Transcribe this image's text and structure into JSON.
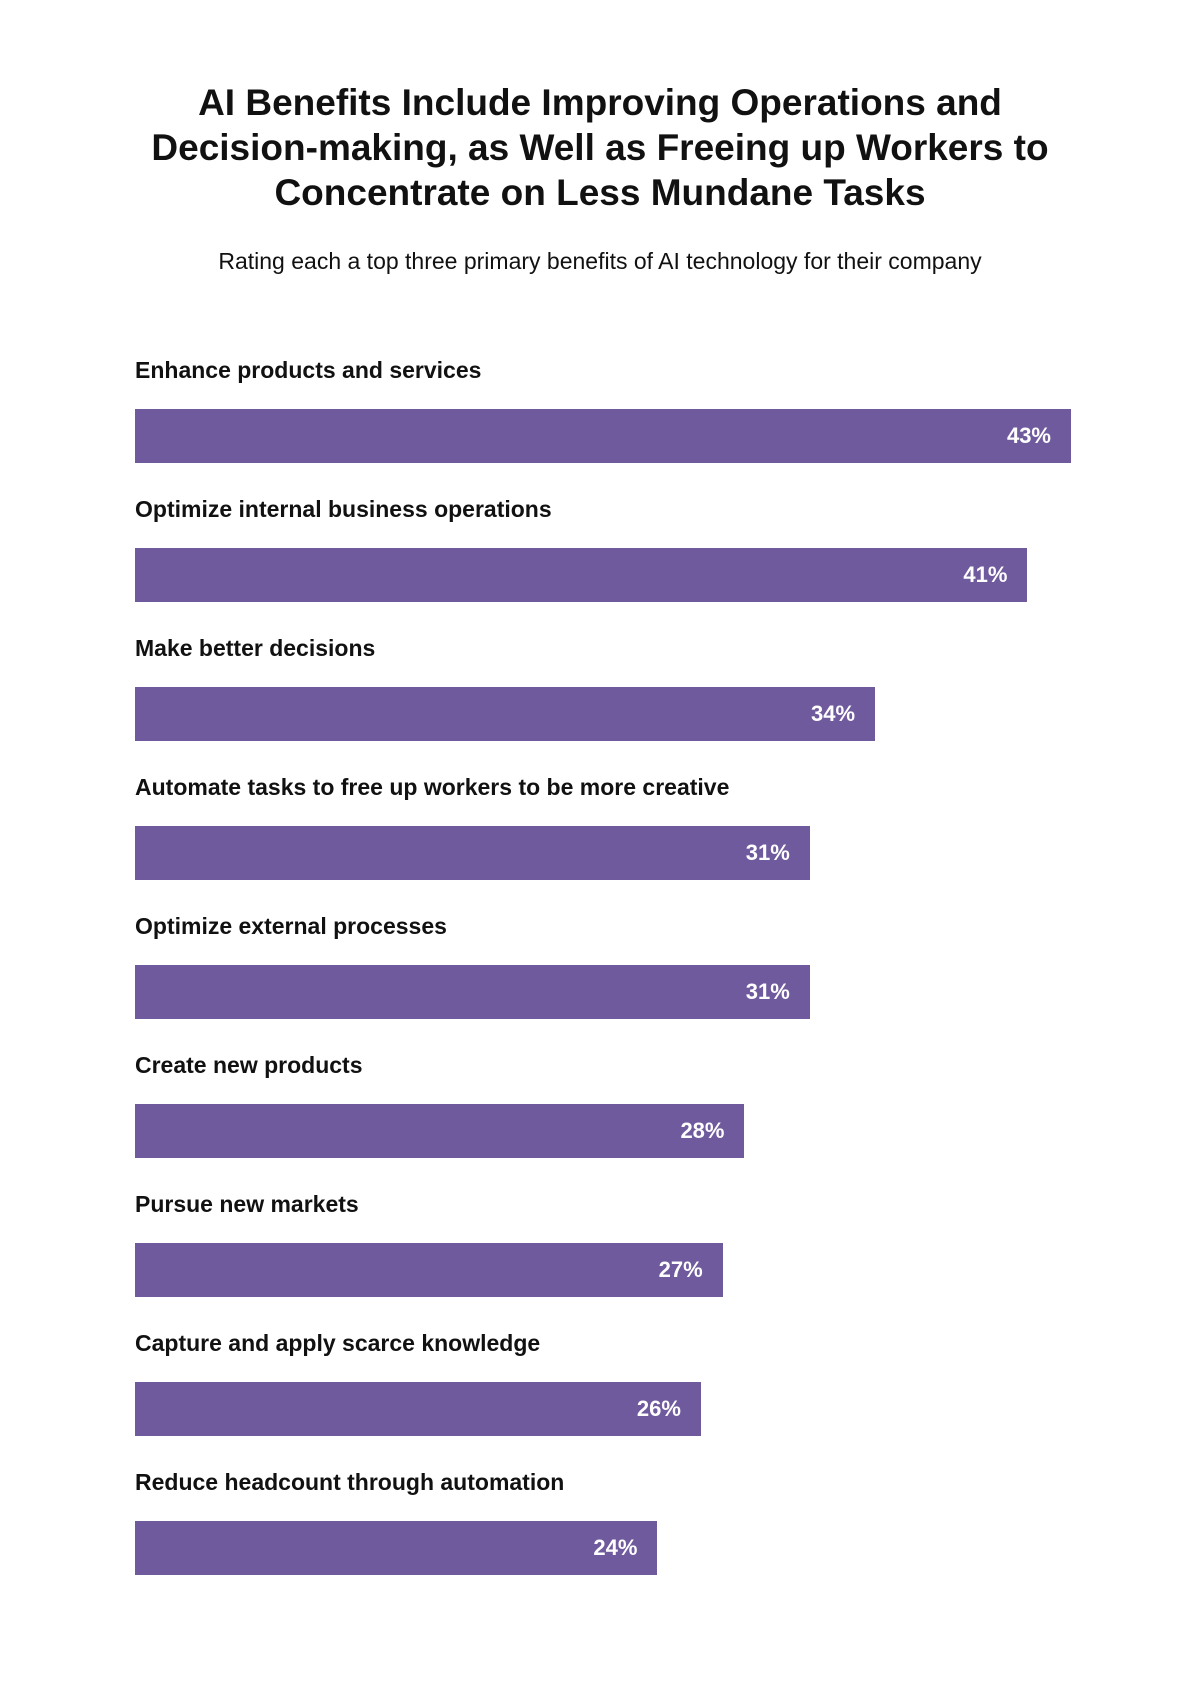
{
  "chart_data": {
    "type": "bar",
    "orientation": "horizontal",
    "title_lines": [
      "AI Benefits Include Improving Operations and",
      "Decision-making, as Well as Freeing up Workers to",
      "Concentrate on Less Mundane Tasks"
    ],
    "subtitle": "Rating each a top three primary benefits of AI technology for their company",
    "categories": [
      "Enhance products and services",
      "Optimize internal business operations",
      "Make better decisions",
      "Automate tasks to free up workers to be more creative",
      "Optimize external processes",
      "Create new products",
      "Pursue new markets",
      "Capture and apply scarce knowledge",
      "Reduce headcount through automation"
    ],
    "values": [
      43,
      41,
      34,
      31,
      31,
      28,
      27,
      26,
      24
    ],
    "value_labels": [
      "43%",
      "41%",
      "34%",
      "31%",
      "31%",
      "28%",
      "27%",
      "26%",
      "24%"
    ],
    "unit": "%",
    "xlim": [
      0,
      43
    ],
    "grid": false,
    "bar_color": "#6f5a9e",
    "value_label_color": "#ffffff"
  }
}
